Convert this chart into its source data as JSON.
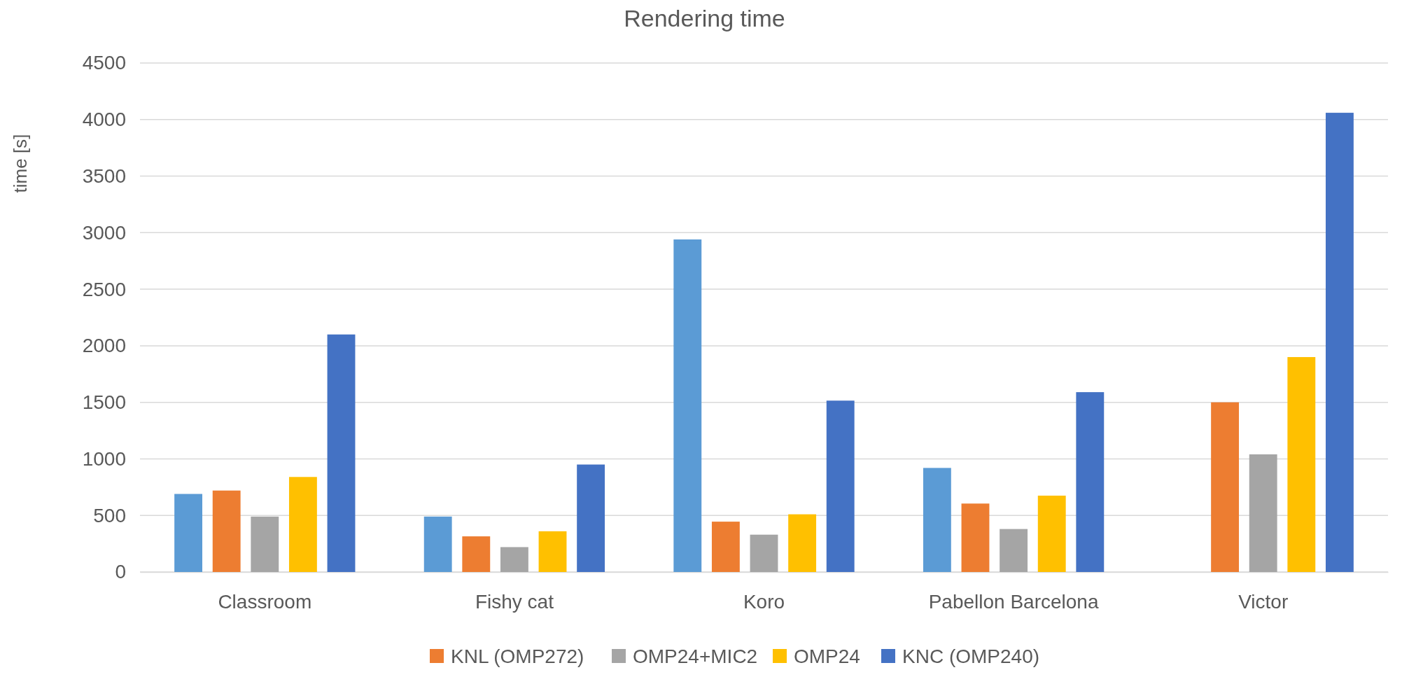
{
  "chart_data": {
    "type": "bar",
    "title": "Rendering time",
    "ylabel": "time [s]",
    "categories": [
      "Classroom",
      "Fishy cat",
      "Koro",
      "Pabellon Barcelona",
      "Victor"
    ],
    "series": [
      {
        "color": "#5b9bd5",
        "values": [
          690,
          490,
          2940,
          920,
          null
        ]
      },
      {
        "name": "KNL (OMP272)",
        "color": "#ed7d31",
        "values": [
          720,
          315,
          445,
          605,
          1500
        ]
      },
      {
        "name": "OMP24+MIC2",
        "color": "#a5a5a5",
        "values": [
          490,
          220,
          330,
          380,
          1040
        ]
      },
      {
        "name": "OMP24",
        "color": "#ffc000",
        "values": [
          840,
          360,
          510,
          675,
          1900
        ]
      },
      {
        "name": "KNC (OMP240)",
        "color": "#4472c4",
        "values": [
          2100,
          950,
          1515,
          1590,
          4060
        ]
      }
    ],
    "ylim": [
      0,
      4500
    ],
    "yticks": [
      0,
      500,
      1000,
      1500,
      2000,
      2500,
      3000,
      3500,
      4000,
      4500
    ],
    "grid": "y",
    "legend": "bottom"
  }
}
